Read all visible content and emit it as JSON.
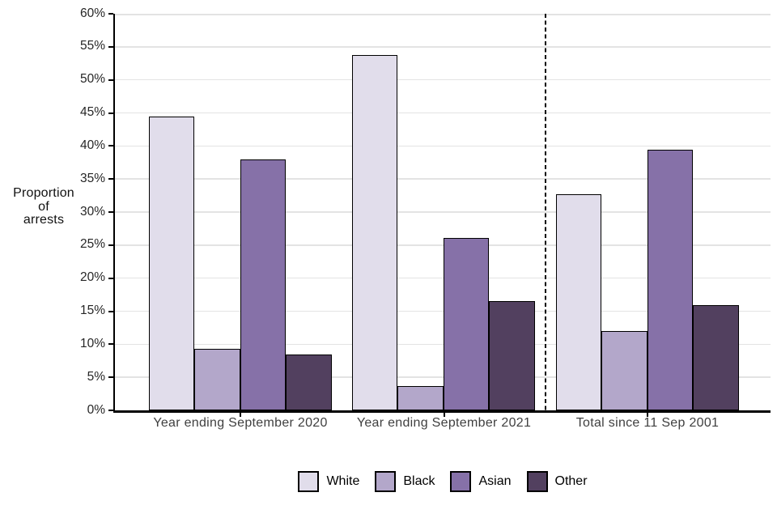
{
  "chart_data": {
    "type": "bar",
    "title": "",
    "xlabel": "",
    "ylabel": "Proportion of arrests",
    "ylabel_lines": [
      "Proportion",
      "of",
      "arrests"
    ],
    "ylim": [
      0,
      60
    ],
    "y_tick_step": 5,
    "y_tick_labels": [
      "0%",
      "5%",
      "10%",
      "15%",
      "20%",
      "25%",
      "30%",
      "35%",
      "40%",
      "45%",
      "50%",
      "55%",
      "60%"
    ],
    "grid": "horizontal gridlines every 5%",
    "legend_position": "bottom",
    "categories": [
      "Year ending September 2020",
      "Year ending September 2021",
      "Total since 11 Sep 2001"
    ],
    "separator": {
      "style": "vertical dashed line",
      "between": [
        "Year ending September 2021",
        "Total since 11 Sep 2001"
      ]
    },
    "series": [
      {
        "name": "White",
        "color": "#E1DDEB",
        "values": [
          44.4,
          53.8,
          32.7
        ]
      },
      {
        "name": "Black",
        "color": "#B3A7CA",
        "values": [
          9.3,
          3.7,
          12.0
        ]
      },
      {
        "name": "Asian",
        "color": "#8671A8",
        "values": [
          38.0,
          26.1,
          39.4
        ]
      },
      {
        "name": "Other",
        "color": "#52405F",
        "values": [
          8.4,
          16.5,
          15.9
        ]
      }
    ],
    "bar_border_color": "#000000",
    "axis_color": "#000000",
    "gridline_color": "#E3E3E3"
  }
}
